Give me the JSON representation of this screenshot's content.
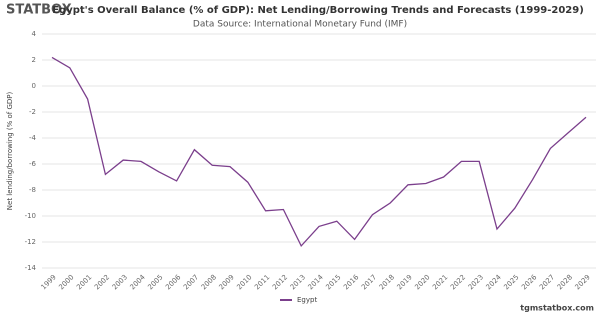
{
  "chart_data": {
    "type": "line",
    "logo": "STATBOX",
    "title": "Egypt's Overall Balance (% of GDP): Net Lending/Borrowing Trends and Forecasts (1999-2029)",
    "subtitle": "Data Source: International Monetary Fund (IMF)",
    "y_label": "Net lending/borrowing (% of GDP)",
    "footer": "tgmstatbox.com",
    "categories": [
      "1999",
      "2000",
      "2001",
      "2002",
      "2003",
      "2004",
      "2005",
      "2006",
      "2007",
      "2008",
      "2009",
      "2010",
      "2011",
      "2012",
      "2013",
      "2014",
      "2015",
      "2016",
      "2017",
      "2018",
      "2019",
      "2020",
      "2021",
      "2022",
      "2023",
      "2024",
      "2025",
      "2026",
      "2027",
      "2028",
      "2029"
    ],
    "series": [
      {
        "name": "Egypt",
        "color": "#7b3f8c",
        "values": [
          2.2,
          1.4,
          -1.0,
          -6.8,
          -5.7,
          -5.8,
          -6.6,
          -7.3,
          -4.9,
          -6.1,
          -6.2,
          -7.4,
          -9.6,
          -9.5,
          -12.3,
          -10.8,
          -10.4,
          -11.8,
          -9.9,
          -9.0,
          -7.6,
          -7.5,
          -7.0,
          -5.8,
          -5.8,
          -11.0,
          -9.4,
          -7.2,
          -4.8,
          -3.6,
          -2.4
        ]
      }
    ],
    "ylim": [
      -14,
      4
    ],
    "yticks": [
      -14,
      -12,
      -10,
      -8,
      -6,
      -4,
      -2,
      0,
      2,
      4
    ],
    "grid": true
  }
}
